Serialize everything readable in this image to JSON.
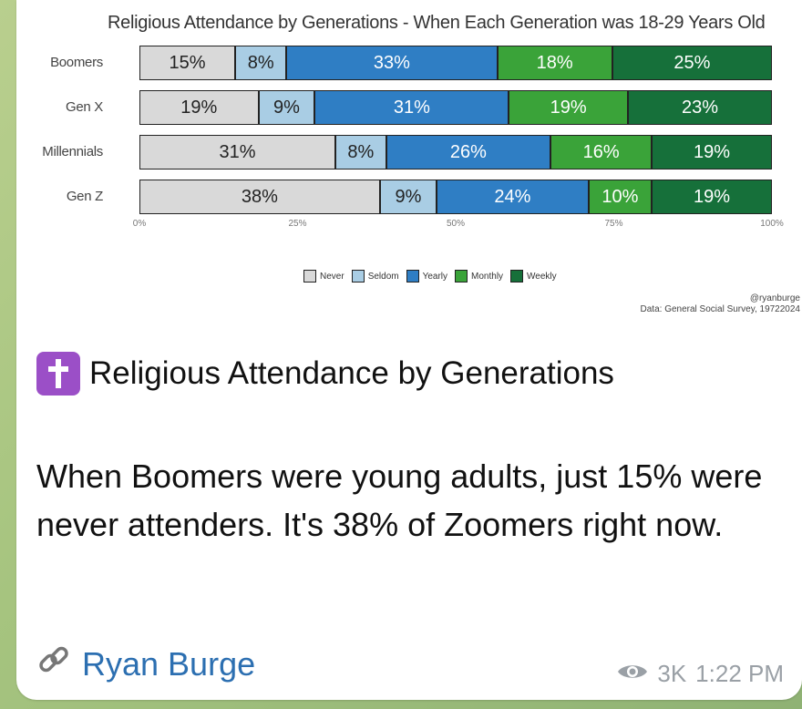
{
  "chart_data": {
    "type": "bar",
    "stacked": true,
    "orientation": "horizontal",
    "title": "Religious Attendance by Generations - When Each Generation was 18-29 Years Old",
    "categories": [
      "Boomers",
      "Gen X",
      "Millennials",
      "Gen Z"
    ],
    "series": [
      {
        "name": "Never",
        "color": "#d9d9d9",
        "values": [
          15,
          19,
          31,
          38
        ],
        "labels": [
          "15%",
          "19%",
          "31%",
          "38%"
        ]
      },
      {
        "name": "Seldom",
        "color": "#a9cde4",
        "values": [
          8,
          9,
          8,
          9
        ],
        "labels": [
          "8%",
          "9%",
          "8%",
          "9%"
        ]
      },
      {
        "name": "Yearly",
        "color": "#2f7ec4",
        "values": [
          33,
          31,
          26,
          24
        ],
        "labels": [
          "33%",
          "31%",
          "26%",
          "24%"
        ]
      },
      {
        "name": "Monthly",
        "color": "#3aa339",
        "values": [
          18,
          19,
          16,
          10
        ],
        "labels": [
          "18%",
          "19%",
          "16%",
          "10%"
        ]
      },
      {
        "name": "Weekly",
        "color": "#16703a",
        "values": [
          25,
          23,
          19,
          19
        ],
        "labels": [
          "25%",
          "23%",
          "19%",
          "19%"
        ]
      }
    ],
    "xticks": [
      "0%",
      "25%",
      "50%",
      "75%",
      "100%"
    ],
    "xlim": [
      0,
      100
    ],
    "legend_position": "bottom",
    "grid": false
  },
  "credit": {
    "handle": "@ryanburge",
    "source": "Data: General Social Survey, 19722024"
  },
  "post": {
    "title": "Religious Attendance by Generations",
    "body": "When Boomers were young adults, just 15% were never attenders. It's 38% of Zoomers right now.",
    "author": "Ryan Burge",
    "views": "3K",
    "time": "1:22 PM"
  },
  "icons": {
    "title_icon": "latin-cross-icon",
    "author_icon": "link-icon",
    "views_icon": "eye-icon"
  },
  "colors": {
    "badge": "#9b4fc7",
    "link": "#2c6fb1",
    "meta": "#9aa0a6"
  }
}
